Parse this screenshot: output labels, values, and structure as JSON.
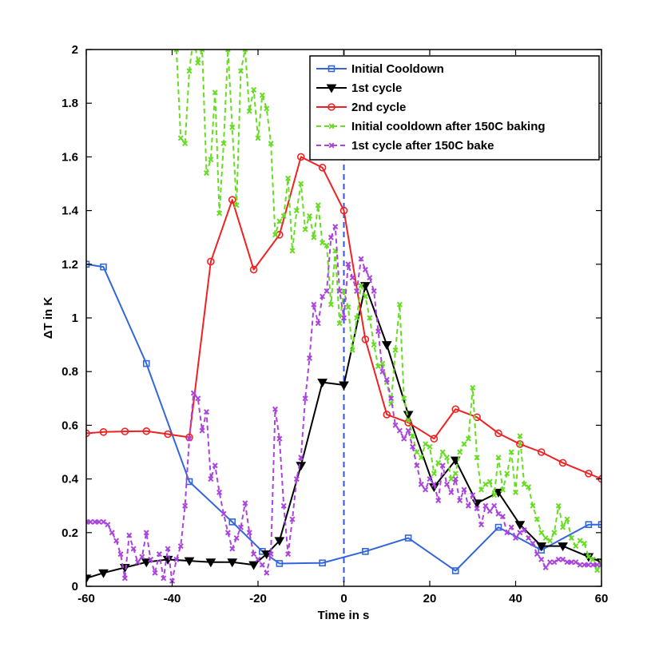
{
  "chart_data": {
    "type": "line",
    "xlabel": "Time in s",
    "ylabel": "ΔT in K",
    "xlim": [
      -60,
      60
    ],
    "ylim": [
      0,
      2
    ],
    "xticks": [
      -60,
      -40,
      -20,
      0,
      20,
      40,
      60
    ],
    "yticks": [
      0,
      0.2,
      0.4,
      0.6,
      0.8,
      1,
      1.2,
      1.4,
      1.6,
      1.8,
      2
    ],
    "ytick_labels": [
      "0",
      "0.2",
      "0.4",
      "0.6",
      "0.8",
      "1",
      "1.2",
      "1.4",
      "1.6",
      "1.8",
      "2"
    ],
    "grid": false,
    "legend_position": "top-right",
    "vline": {
      "x": 0,
      "color": "#3355dd",
      "style": "dashed"
    },
    "series": [
      {
        "name": "Initial Cooldown",
        "color": "#3366dd",
        "marker": "square",
        "dash": false,
        "x": [
          -60,
          -56,
          -46,
          -36,
          -26,
          -19,
          -15,
          -5,
          5,
          15,
          26,
          36,
          46,
          57,
          60
        ],
        "y": [
          1.2,
          1.19,
          0.83,
          0.39,
          0.24,
          0.13,
          0.085,
          0.087,
          0.13,
          0.18,
          0.058,
          0.22,
          0.135,
          0.23,
          0.23
        ]
      },
      {
        "name": "1st cycle",
        "color": "#000000",
        "marker": "triangle-down",
        "dash": false,
        "x": [
          -60,
          -56,
          -51,
          -46,
          -41,
          -36,
          -31,
          -26,
          -21,
          -18,
          -15,
          -10,
          -5,
          0,
          5,
          10,
          15,
          21,
          26,
          31,
          36,
          41,
          46,
          51,
          57,
          60
        ],
        "y": [
          0.03,
          0.05,
          0.07,
          0.09,
          0.1,
          0.095,
          0.09,
          0.09,
          0.08,
          0.12,
          0.17,
          0.45,
          0.76,
          0.75,
          1.12,
          0.9,
          0.64,
          0.37,
          0.47,
          0.31,
          0.35,
          0.23,
          0.15,
          0.15,
          0.11,
          0.09
        ]
      },
      {
        "name": "2nd cycle",
        "color": "#ee2222",
        "marker": "circle",
        "dash": false,
        "x": [
          -60,
          -56,
          -51,
          -46,
          -41,
          -36,
          -31,
          -26,
          -21,
          -15,
          -10,
          -5,
          0,
          5,
          10,
          15,
          21,
          26,
          31,
          36,
          41,
          46,
          51,
          57,
          60
        ],
        "y": [
          0.57,
          0.575,
          0.577,
          0.578,
          0.567,
          0.555,
          1.21,
          1.44,
          1.18,
          1.31,
          1.6,
          1.56,
          1.4,
          0.92,
          0.64,
          0.61,
          0.55,
          0.66,
          0.63,
          0.57,
          0.53,
          0.5,
          0.46,
          0.42,
          0.4
        ]
      },
      {
        "name": "Initial cooldown after 150C baking",
        "color": "#66dd22",
        "marker": "x",
        "dash": true,
        "x": [
          -39,
          -38,
          -37,
          -36,
          -35,
          -34,
          -33,
          -32,
          -31,
          -30,
          -29,
          -28,
          -27,
          -26,
          -25,
          -24,
          -23,
          -22,
          -21,
          -20,
          -19,
          -18,
          -17,
          -16,
          -15,
          -14,
          -13,
          -12,
          -11,
          -10,
          -9,
          -8,
          -7,
          -6,
          -5,
          -4,
          -3,
          -2,
          -1,
          0,
          1,
          2,
          3,
          4,
          5,
          6,
          7,
          8,
          9,
          10,
          11,
          12,
          13,
          14,
          15,
          16,
          17,
          18,
          19,
          20,
          21,
          22,
          23,
          24,
          25,
          26,
          27,
          28,
          29,
          30,
          31,
          32,
          33,
          34,
          35,
          36,
          37,
          38,
          39,
          40,
          41,
          42,
          43,
          44,
          45,
          46,
          47,
          48,
          49,
          50,
          51,
          52,
          53,
          54,
          55,
          56,
          57,
          58,
          59,
          60
        ],
        "y": [
          2.0,
          1.67,
          1.65,
          1.92,
          2.05,
          1.95,
          2.0,
          1.54,
          1.59,
          1.84,
          1.39,
          1.65,
          2.0,
          1.71,
          1.42,
          1.92,
          2.0,
          1.77,
          1.85,
          1.67,
          1.83,
          1.78,
          1.65,
          1.31,
          1.36,
          1.38,
          1.52,
          1.25,
          1.4,
          1.5,
          1.33,
          1.38,
          1.3,
          1.42,
          1.28,
          1.27,
          1.05,
          1.25,
          0.98,
          1.1,
          1.04,
          0.88,
          1.0,
          1.12,
          1.08,
          1.0,
          0.9,
          0.82,
          0.83,
          0.76,
          0.68,
          0.88,
          1.05,
          0.7,
          0.62,
          0.56,
          0.5,
          0.48,
          0.53,
          0.52,
          0.42,
          0.46,
          0.5,
          0.48,
          0.4,
          0.42,
          0.5,
          0.53,
          0.55,
          0.74,
          0.48,
          0.36,
          0.38,
          0.39,
          0.34,
          0.48,
          0.36,
          0.42,
          0.5,
          0.35,
          0.56,
          0.38,
          0.37,
          0.3,
          0.25,
          0.2,
          0.18,
          0.17,
          0.2,
          0.3,
          0.22,
          0.25,
          0.18,
          0.15,
          0.17,
          0.16,
          0.11,
          0.1,
          0.06,
          0.09
        ]
      },
      {
        "name": "1st cycle after 150C bake",
        "color": "#aa44dd",
        "marker": "x",
        "dash": true,
        "x": [
          -60,
          -59,
          -58,
          -57,
          -56,
          -55,
          -54,
          -53,
          -52,
          -51,
          -50,
          -49,
          -48,
          -47,
          -46,
          -45,
          -44,
          -43,
          -42,
          -41,
          -40,
          -39,
          -38,
          -37,
          -36,
          -35,
          -34,
          -33,
          -32,
          -31,
          -30,
          -29,
          -28,
          -27,
          -26,
          -25,
          -24,
          -23,
          -22,
          -21,
          -20,
          -19,
          -18,
          -17,
          -16,
          -15,
          -14,
          -13,
          -12,
          -11,
          -10,
          -9,
          -8,
          -7,
          -6,
          -5,
          -4,
          -3,
          -2,
          -1,
          0,
          1,
          2,
          3,
          4,
          5,
          6,
          7,
          8,
          9,
          10,
          11,
          12,
          13,
          14,
          15,
          16,
          17,
          18,
          19,
          20,
          21,
          22,
          23,
          24,
          25,
          26,
          27,
          28,
          29,
          30,
          31,
          32,
          33,
          34,
          35,
          36,
          37,
          38,
          39,
          40,
          41,
          42,
          43,
          44,
          45,
          46,
          47,
          48,
          49,
          50,
          51,
          52,
          53,
          54,
          55,
          56,
          57,
          58,
          59,
          60
        ],
        "y": [
          0.24,
          0.24,
          0.24,
          0.24,
          0.24,
          0.23,
          0.2,
          0.17,
          0.12,
          0.03,
          0.19,
          0.14,
          0.09,
          0.11,
          0.2,
          0.1,
          0.05,
          0.12,
          0.03,
          0.14,
          0.02,
          0.1,
          0.15,
          0.3,
          0.55,
          0.72,
          0.7,
          0.58,
          0.65,
          0.4,
          0.45,
          0.35,
          0.27,
          0.2,
          0.14,
          0.18,
          0.22,
          0.31,
          0.2,
          0.12,
          0.1,
          0.08,
          0.05,
          0.12,
          0.66,
          0.55,
          0.3,
          0.12,
          0.25,
          0.4,
          0.48,
          0.7,
          0.85,
          1.05,
          0.98,
          1.08,
          1.1,
          1.3,
          1.34,
          1.1,
          1.0,
          1.2,
          1.15,
          1.1,
          1.22,
          1.18,
          1.15,
          1.1,
          0.95,
          0.8,
          0.77,
          0.7,
          0.6,
          0.58,
          0.55,
          0.58,
          0.52,
          0.45,
          0.38,
          0.36,
          0.4,
          0.38,
          0.32,
          0.45,
          0.38,
          0.35,
          0.4,
          0.32,
          0.36,
          0.3,
          0.34,
          0.29,
          0.23,
          0.3,
          0.28,
          0.3,
          0.27,
          0.26,
          0.2,
          0.22,
          0.18,
          0.2,
          0.21,
          0.18,
          0.16,
          0.12,
          0.1,
          0.07,
          0.09,
          0.09,
          0.1,
          0.1,
          0.09,
          0.09,
          0.09,
          0.08,
          0.08,
          0.08,
          0.08,
          0.08,
          0.08
        ]
      }
    ]
  }
}
